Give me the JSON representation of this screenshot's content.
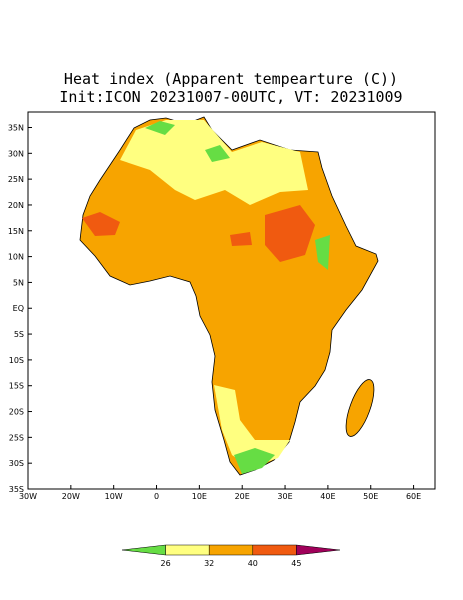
{
  "map": {
    "title": "Heat index (Apparent tempearture (C))",
    "subtitle": "Init:ICON 20231007-00UTC, VT: 20231009",
    "xlim": [
      -30,
      65
    ],
    "ylim": [
      -35,
      38
    ],
    "xticks": [
      {
        "value": -30,
        "label": "30W"
      },
      {
        "value": -20,
        "label": "20W"
      },
      {
        "value": -10,
        "label": "10W"
      },
      0,
      {
        "value": 10,
        "label": "10E"
      },
      {
        "value": 20,
        "label": "20E"
      },
      {
        "value": 30,
        "label": "30E"
      },
      {
        "value": 40,
        "label": "40E"
      },
      {
        "value": 50,
        "label": "50E"
      },
      {
        "value": 60,
        "label": "60E"
      }
    ],
    "yticks": [
      {
        "value": 35,
        "label": "35N"
      },
      {
        "value": 30,
        "label": "30N"
      },
      {
        "value": 25,
        "label": "25N"
      },
      {
        "value": 20,
        "label": "20N"
      },
      {
        "value": 15,
        "label": "15N"
      },
      {
        "value": 10,
        "label": "10N"
      },
      {
        "value": 5,
        "label": "5N"
      },
      {
        "value": 0,
        "label": "EQ"
      },
      {
        "value": -5,
        "label": "5S"
      },
      {
        "value": -10,
        "label": "10S"
      },
      {
        "value": -15,
        "label": "15S"
      },
      {
        "value": -20,
        "label": "20S"
      },
      {
        "value": -25,
        "label": "25S"
      },
      {
        "value": -30,
        "label": "30S"
      },
      {
        "value": -35,
        "label": "35S"
      }
    ],
    "colorbar": {
      "levels": [
        26,
        32,
        40,
        45
      ],
      "colors": [
        "#66dd44",
        "#ffff80",
        "#f7a400",
        "#f05a10",
        "#a0005a"
      ]
    }
  }
}
